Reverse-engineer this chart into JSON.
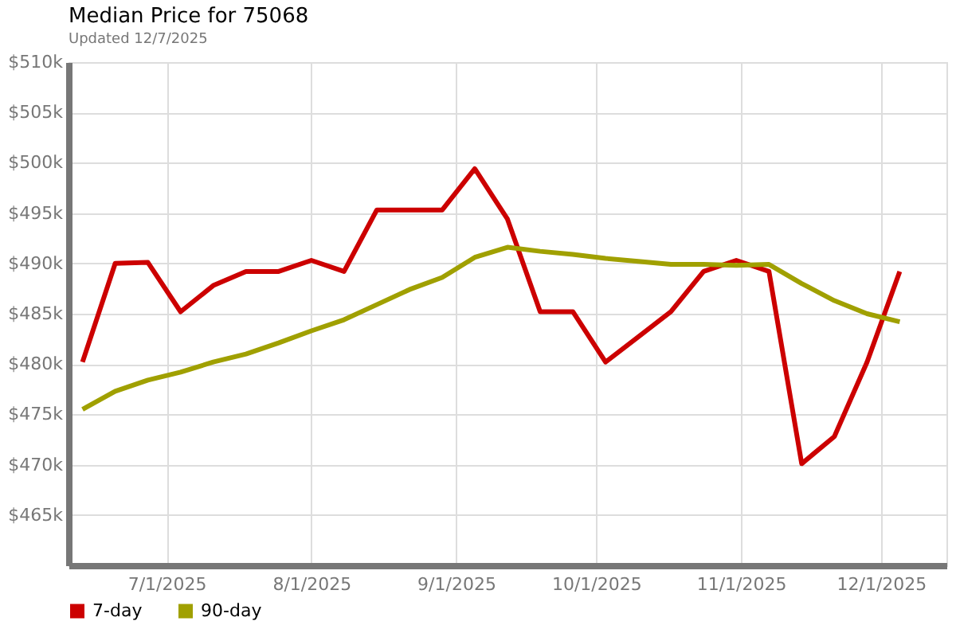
{
  "chart_data": {
    "type": "line",
    "title": "Median Price for 75068",
    "subtitle": "Updated 12/7/2025",
    "x": [
      "2025-06-13",
      "2025-06-20",
      "2025-06-27",
      "2025-07-04",
      "2025-07-11",
      "2025-07-18",
      "2025-07-25",
      "2025-08-01",
      "2025-08-08",
      "2025-08-15",
      "2025-08-22",
      "2025-08-29",
      "2025-09-05",
      "2025-09-12",
      "2025-09-19",
      "2025-09-26",
      "2025-10-03",
      "2025-10-10",
      "2025-10-17",
      "2025-10-24",
      "2025-10-31",
      "2025-11-07",
      "2025-11-14",
      "2025-11-21",
      "2025-11-28",
      "2025-12-05"
    ],
    "series": [
      {
        "name": "7-day",
        "color": "#cc0000",
        "values": [
          480.2,
          490.0,
          490.1,
          485.2,
          487.8,
          489.2,
          489.2,
          490.3,
          489.2,
          495.3,
          495.3,
          495.3,
          499.4,
          494.4,
          485.2,
          485.2,
          480.2,
          482.7,
          485.2,
          489.2,
          490.3,
          489.2,
          470.1,
          472.8,
          480.2,
          489.2
        ]
      },
      {
        "name": "90-day",
        "color": "#a0a000",
        "values": [
          475.5,
          477.3,
          478.4,
          479.2,
          480.2,
          481.0,
          482.1,
          483.3,
          484.4,
          485.9,
          487.4,
          488.6,
          490.6,
          491.6,
          491.2,
          490.9,
          490.5,
          490.2,
          489.9,
          489.9,
          489.8,
          489.9,
          488.0,
          486.3,
          485.0,
          484.2
        ]
      }
    ],
    "xlim": [
      "2025-06-10",
      "2025-12-15"
    ],
    "xticks": [
      {
        "value": "2025-07-01",
        "label": "7/1/2025"
      },
      {
        "value": "2025-08-01",
        "label": "8/1/2025"
      },
      {
        "value": "2025-09-01",
        "label": "9/1/2025"
      },
      {
        "value": "2025-10-01",
        "label": "10/1/2025"
      },
      {
        "value": "2025-11-01",
        "label": "11/1/2025"
      },
      {
        "value": "2025-12-01",
        "label": "12/1/2025"
      }
    ],
    "ylim": [
      460,
      510
    ],
    "yticks": [
      {
        "value": 465,
        "label": "$465k"
      },
      {
        "value": 470,
        "label": "$470k"
      },
      {
        "value": 475,
        "label": "$475k"
      },
      {
        "value": 480,
        "label": "$480k"
      },
      {
        "value": 485,
        "label": "$485k"
      },
      {
        "value": 490,
        "label": "$490k"
      },
      {
        "value": 495,
        "label": "$495k"
      },
      {
        "value": 500,
        "label": "$500k"
      },
      {
        "value": 505,
        "label": "$505k"
      },
      {
        "value": 510,
        "label": "$510k"
      }
    ],
    "grid": true,
    "legend": "bottom left",
    "marker": "none",
    "line_style": "solid"
  }
}
